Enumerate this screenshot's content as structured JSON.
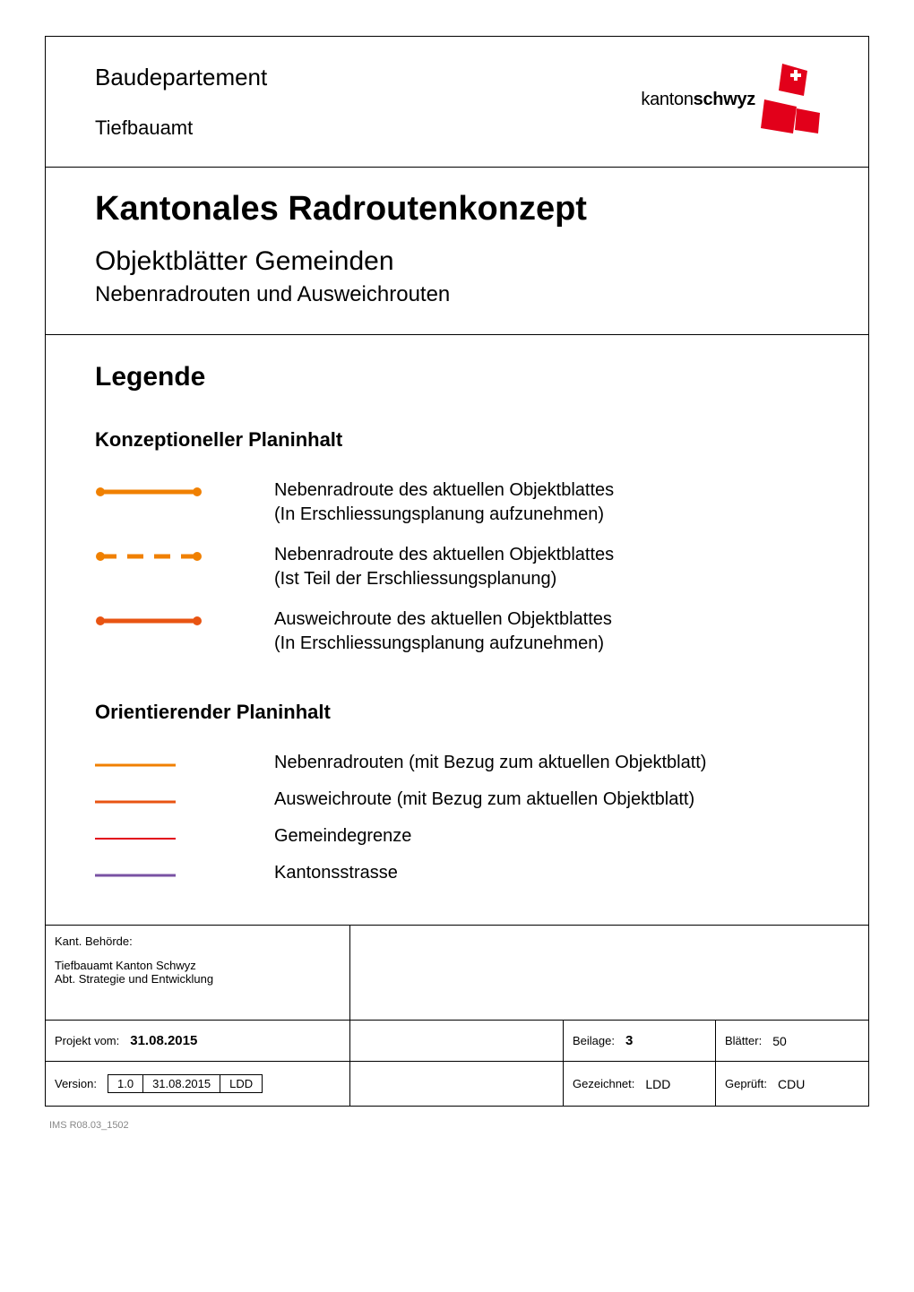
{
  "header": {
    "department": "Baudepartement",
    "office": "Tiefbauamt",
    "logo_prefix": "kanton",
    "logo_bold": "schwyz",
    "logo_colors": {
      "primary": "#e2001a",
      "accent": "#e2001a"
    }
  },
  "title": {
    "main": "Kantonales Radroutenkonzept",
    "sub": "Objektblätter Gemeinden",
    "subsub": "Nebenradrouten und Ausweichrouten"
  },
  "legend": {
    "heading": "Legende",
    "group1": {
      "heading": "Konzeptioneller Planinhalt",
      "items": [
        {
          "symbol": {
            "type": "line-dots",
            "color": "#f08000",
            "width": 5,
            "dashed": false
          },
          "line1": "Nebenradroute des aktuellen Objektblattes",
          "line2": "(In Erschliessungsplanung aufzunehmen)"
        },
        {
          "symbol": {
            "type": "line-dots",
            "color": "#f08000",
            "width": 5,
            "dashed": true
          },
          "line1": "Nebenradroute des aktuellen Objektblattes",
          "line2": "(Ist Teil der Erschliessungsplanung)"
        },
        {
          "symbol": {
            "type": "line-dots",
            "color": "#e85412",
            "width": 5,
            "dashed": false
          },
          "line1": "Ausweichroute des aktuellen Objektblattes",
          "line2": "(In Erschliessungsplanung aufzunehmen)"
        }
      ]
    },
    "group2": {
      "heading": "Orientierender Planinhalt",
      "items": [
        {
          "symbol": {
            "type": "line",
            "color": "#f08000",
            "width": 3
          },
          "text": "Nebenradrouten (mit Bezug zum aktuellen Objektblatt)"
        },
        {
          "symbol": {
            "type": "line",
            "color": "#e85412",
            "width": 3
          },
          "text": "Ausweichroute (mit Bezug zum aktuellen Objektblatt)"
        },
        {
          "symbol": {
            "type": "line",
            "color": "#e2001a",
            "width": 2
          },
          "text": "Gemeindegrenze"
        },
        {
          "symbol": {
            "type": "line",
            "color": "#7952a3",
            "width": 3
          },
          "text": "Kantonsstrasse"
        }
      ]
    }
  },
  "footer": {
    "authority_label": "Kant. Behörde:",
    "authority_line1": "Tiefbauamt Kanton Schwyz",
    "authority_line2": "Abt. Strategie und Entwicklung",
    "project_label": "Projekt vom:",
    "project_date": "31.08.2015",
    "version_label": "Version:",
    "version_no": "1.0",
    "version_date": "31.08.2015",
    "version_by": "LDD",
    "beilage_label": "Beilage:",
    "beilage_val": "3",
    "blatter_label": "Blätter:",
    "blatter_val": "50",
    "gezeichnet_label": "Gezeichnet:",
    "gezeichnet_val": "LDD",
    "geprueft_label": "Geprüft:",
    "geprueft_val": "CDU"
  },
  "doc_ref": "IMS R08.03_1502"
}
